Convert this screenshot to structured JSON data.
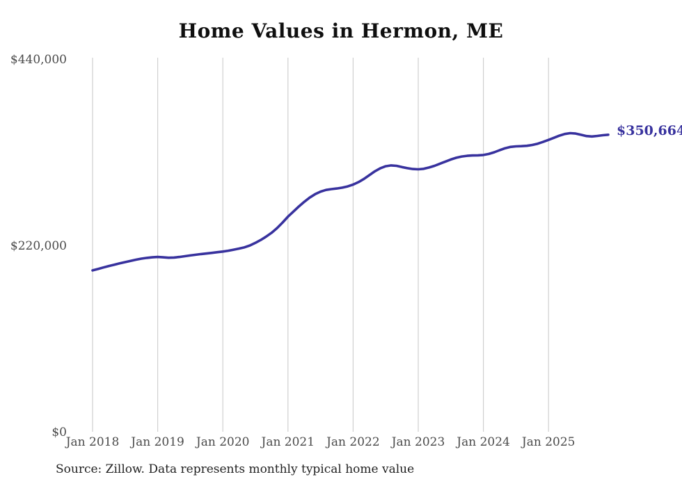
{
  "chart_data": {
    "type": "line",
    "title": "Home Values in Hermon, ME",
    "source_note": "Source: Zillow. Data represents monthly typical home value",
    "series_name": "Monthly typical home value",
    "end_label": "$350,664",
    "final_value": 350664,
    "legend": "none",
    "grid": "vertical-year-lines-only",
    "ylim": [
      0,
      440000
    ],
    "y_ticks": [
      0,
      220000,
      440000
    ],
    "y_tick_labels": [
      "$0",
      "$220,000",
      "$440,000"
    ],
    "x_tick_labels": [
      "Jan 2018",
      "Jan 2019",
      "Jan 2020",
      "Jan 2021",
      "Jan 2022",
      "Jan 2023",
      "Jan 2024",
      "Jan 2025"
    ],
    "line_color": "#38329e",
    "grid_color": "#cfcfcf",
    "axis_label_color": "#4a4a4a",
    "x": [
      "2018-01",
      "2018-02",
      "2018-03",
      "2018-04",
      "2018-05",
      "2018-06",
      "2018-07",
      "2018-08",
      "2018-09",
      "2018-10",
      "2018-11",
      "2018-12",
      "2019-01",
      "2019-02",
      "2019-03",
      "2019-04",
      "2019-05",
      "2019-06",
      "2019-07",
      "2019-08",
      "2019-09",
      "2019-10",
      "2019-11",
      "2019-12",
      "2020-01",
      "2020-02",
      "2020-03",
      "2020-04",
      "2020-05",
      "2020-06",
      "2020-07",
      "2020-08",
      "2020-09",
      "2020-10",
      "2020-11",
      "2020-12",
      "2021-01",
      "2021-02",
      "2021-03",
      "2021-04",
      "2021-05",
      "2021-06",
      "2021-07",
      "2021-08",
      "2021-09",
      "2021-10",
      "2021-11",
      "2021-12",
      "2022-01",
      "2022-02",
      "2022-03",
      "2022-04",
      "2022-05",
      "2022-06",
      "2022-07",
      "2022-08",
      "2022-09",
      "2022-10",
      "2022-11",
      "2022-12",
      "2023-01",
      "2023-02",
      "2023-03",
      "2023-04",
      "2023-05",
      "2023-06",
      "2023-07",
      "2023-08",
      "2023-09",
      "2023-10",
      "2023-11",
      "2023-12",
      "2024-01",
      "2024-02",
      "2024-03",
      "2024-04",
      "2024-05",
      "2024-06",
      "2024-07",
      "2024-08",
      "2024-09",
      "2024-10",
      "2024-11",
      "2024-12",
      "2025-01",
      "2025-02",
      "2025-03",
      "2025-04",
      "2025-05",
      "2025-06",
      "2025-07",
      "2025-08",
      "2025-09",
      "2025-10",
      "2025-11",
      "2025-12"
    ],
    "values": [
      190500,
      192200,
      194000,
      195700,
      197300,
      198800,
      200300,
      201800,
      203200,
      204400,
      205300,
      206000,
      206400,
      206000,
      205500,
      205700,
      206400,
      207300,
      208200,
      209000,
      209800,
      210500,
      211200,
      212000,
      212800,
      213800,
      215000,
      216300,
      217800,
      220000,
      223000,
      226500,
      230500,
      235000,
      240500,
      247000,
      254000,
      260000,
      266000,
      271500,
      276500,
      280500,
      283500,
      285500,
      286500,
      287200,
      288200,
      289700,
      291800,
      294800,
      298600,
      303000,
      307500,
      311000,
      313500,
      314500,
      314000,
      312500,
      311200,
      310200,
      309900,
      310500,
      312000,
      314000,
      316500,
      319000,
      321500,
      323500,
      325000,
      325800,
      326200,
      326400,
      326800,
      328000,
      330000,
      332500,
      334800,
      336300,
      337000,
      337200,
      337600,
      338600,
      340100,
      342200,
      344600,
      347100,
      349600,
      351600,
      352600,
      352100,
      350600,
      349100,
      348600,
      349300,
      350100,
      350664
    ]
  }
}
